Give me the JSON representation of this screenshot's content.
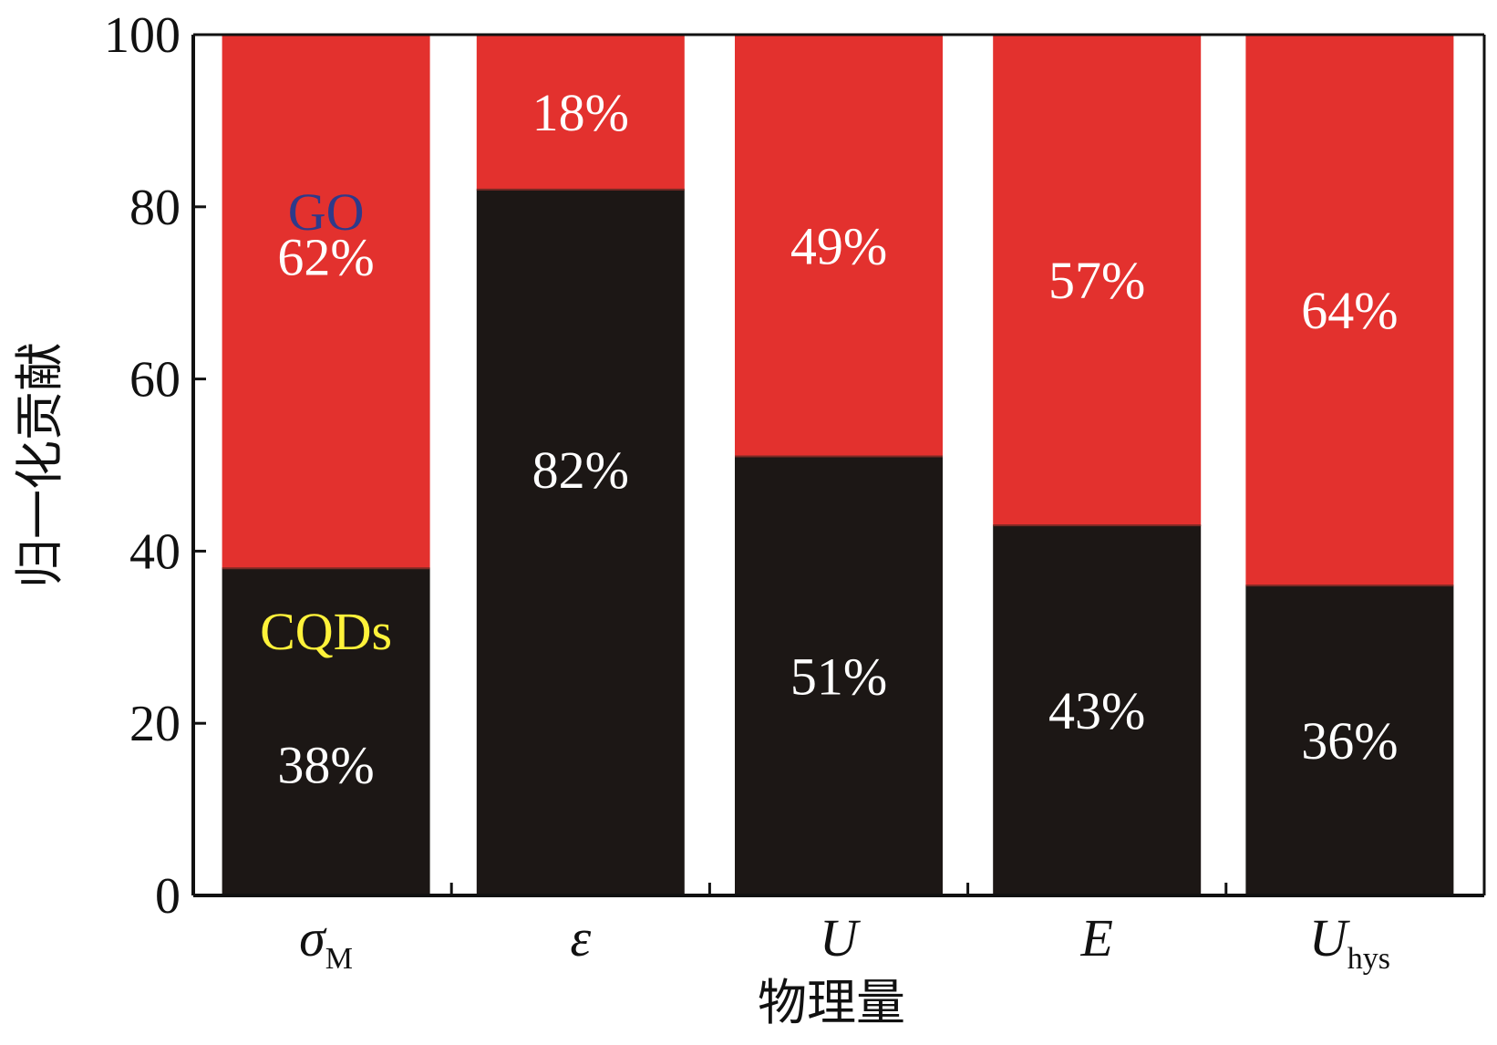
{
  "chart_data": {
    "type": "bar",
    "stacked": true,
    "ylabel": "归一化贡献",
    "xlabel": "物理量",
    "ylim": [
      0,
      100
    ],
    "yticks": [
      "0",
      "20",
      "40",
      "60",
      "80",
      "100"
    ],
    "categories": [
      {
        "main": "σ",
        "sub": "M",
        "italic": true
      },
      {
        "main": "ε",
        "sub": "",
        "italic": true
      },
      {
        "main": "U",
        "sub": "",
        "italic": true
      },
      {
        "main": "E",
        "sub": "",
        "italic": true
      },
      {
        "main": "U",
        "sub": "hys",
        "italic": true
      }
    ],
    "series": [
      {
        "name": "CQDs",
        "color": "#1c1715",
        "values": [
          38,
          82,
          51,
          43,
          36
        ],
        "labels": [
          "38%",
          "82%",
          "51%",
          "43%",
          "36%"
        ]
      },
      {
        "name": "GO",
        "color": "#e3312e",
        "values": [
          62,
          18,
          49,
          57,
          64
        ],
        "labels": [
          "62%",
          "18%",
          "49%",
          "57%",
          "64%"
        ]
      }
    ],
    "series_label_colors": {
      "CQDs": "#fff23a",
      "GO": "#2e3a8a"
    },
    "grid": false
  }
}
